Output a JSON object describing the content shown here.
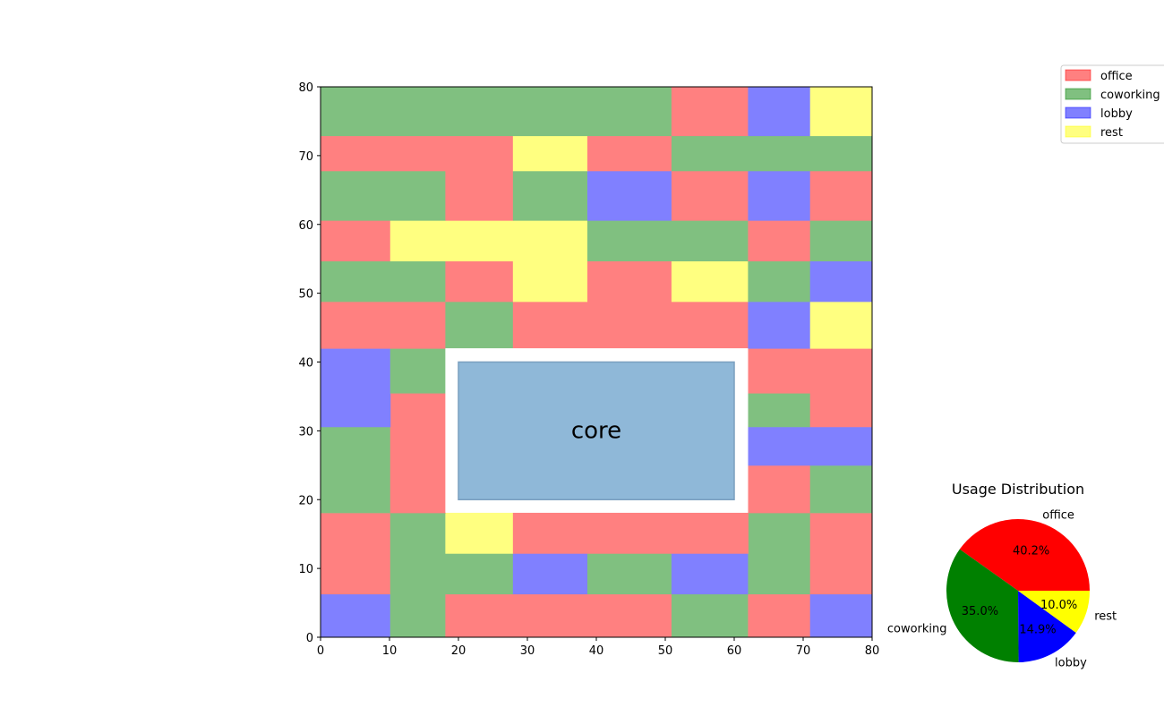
{
  "colors": {
    "office": "#ff8080",
    "coworking": "#80c080",
    "lobby": "#8080ff",
    "rest": "#ffff80",
    "core": "#8fb8d8",
    "pie_office": "#ff0000",
    "pie_coworking": "#008000",
    "pie_lobby": "#0000ff",
    "pie_rest": "#ffff00"
  },
  "chart_data": [
    {
      "type": "heatmap",
      "title": "",
      "xlabel": "",
      "ylabel": "",
      "xlim": [
        0,
        80
      ],
      "ylim": [
        0,
        80
      ],
      "xticks": [
        "0",
        "10",
        "20",
        "30",
        "40",
        "50",
        "60",
        "70",
        "80"
      ],
      "yticks": [
        "0",
        "10",
        "20",
        "30",
        "40",
        "50",
        "60",
        "70",
        "80"
      ],
      "legend": {
        "placement": "top-right",
        "entries": [
          "office",
          "coworking",
          "lobby",
          "rest"
        ]
      },
      "core": {
        "label": "core",
        "x0": 20,
        "y0": 20,
        "x1": 60,
        "y1": 40
      },
      "core_gap": {
        "x0": 18.1,
        "y0": 18.1,
        "x1": 62.0,
        "y1": 42.0
      },
      "cells": [
        {
          "x0": 0,
          "x1": 10.1,
          "y0": 0,
          "y1": 6.3,
          "use": "lobby"
        },
        {
          "x0": 10.1,
          "x1": 18.1,
          "y0": 0,
          "y1": 6.3,
          "use": "coworking"
        },
        {
          "x0": 18.1,
          "x1": 50.9,
          "y0": 0,
          "y1": 6.3,
          "use": "office"
        },
        {
          "x0": 50.9,
          "x1": 62.0,
          "y0": 0,
          "y1": 6.3,
          "use": "coworking"
        },
        {
          "x0": 62.0,
          "x1": 71.0,
          "y0": 0,
          "y1": 6.3,
          "use": "office"
        },
        {
          "x0": 71.0,
          "x1": 80,
          "y0": 0,
          "y1": 6.3,
          "use": "lobby"
        },
        {
          "x0": 0,
          "x1": 10.1,
          "y0": 6.3,
          "y1": 18.1,
          "use": "office"
        },
        {
          "x0": 10.1,
          "x1": 18.1,
          "y0": 6.3,
          "y1": 18.1,
          "use": "coworking"
        },
        {
          "x0": 18.1,
          "x1": 27.9,
          "y0": 6.3,
          "y1": 12.2,
          "use": "coworking"
        },
        {
          "x0": 27.9,
          "x1": 38.7,
          "y0": 6.3,
          "y1": 12.2,
          "use": "lobby"
        },
        {
          "x0": 38.7,
          "x1": 50.9,
          "y0": 6.3,
          "y1": 12.2,
          "use": "coworking"
        },
        {
          "x0": 50.9,
          "x1": 62.0,
          "y0": 6.3,
          "y1": 12.2,
          "use": "lobby"
        },
        {
          "x0": 62.0,
          "x1": 71.0,
          "y0": 6.3,
          "y1": 18.1,
          "use": "coworking"
        },
        {
          "x0": 71.0,
          "x1": 80,
          "y0": 6.3,
          "y1": 18.1,
          "use": "office"
        },
        {
          "x0": 18.1,
          "x1": 27.9,
          "y0": 12.2,
          "y1": 18.1,
          "use": "rest"
        },
        {
          "x0": 27.9,
          "x1": 62.0,
          "y0": 12.2,
          "y1": 18.1,
          "use": "office"
        },
        {
          "x0": 0,
          "x1": 10.1,
          "y0": 18.1,
          "y1": 30.6,
          "use": "coworking"
        },
        {
          "x0": 10.1,
          "x1": 18.1,
          "y0": 18.1,
          "y1": 35.5,
          "use": "office"
        },
        {
          "x0": 62.0,
          "x1": 71.0,
          "y0": 18.1,
          "y1": 25.0,
          "use": "office"
        },
        {
          "x0": 71.0,
          "x1": 80,
          "y0": 18.1,
          "y1": 25.0,
          "use": "coworking"
        },
        {
          "x0": 62.0,
          "x1": 80,
          "y0": 25.0,
          "y1": 30.6,
          "use": "lobby"
        },
        {
          "x0": 0,
          "x1": 10.1,
          "y0": 30.6,
          "y1": 42.0,
          "use": "lobby"
        },
        {
          "x0": 62.0,
          "x1": 71.0,
          "y0": 30.6,
          "y1": 35.5,
          "use": "coworking"
        },
        {
          "x0": 71.0,
          "x1": 80,
          "y0": 30.6,
          "y1": 42.0,
          "use": "office"
        },
        {
          "x0": 10.1,
          "x1": 18.1,
          "y0": 35.5,
          "y1": 42.0,
          "use": "coworking"
        },
        {
          "x0": 62.0,
          "x1": 71.0,
          "y0": 35.5,
          "y1": 42.0,
          "use": "office"
        },
        {
          "x0": 0,
          "x1": 18.1,
          "y0": 42.0,
          "y1": 48.8,
          "use": "office"
        },
        {
          "x0": 18.1,
          "x1": 27.9,
          "y0": 42.0,
          "y1": 48.8,
          "use": "coworking"
        },
        {
          "x0": 27.9,
          "x1": 62.0,
          "y0": 42.0,
          "y1": 48.8,
          "use": "office"
        },
        {
          "x0": 62.0,
          "x1": 71.0,
          "y0": 42.0,
          "y1": 48.8,
          "use": "lobby"
        },
        {
          "x0": 71.0,
          "x1": 80,
          "y0": 42.0,
          "y1": 48.8,
          "use": "rest"
        },
        {
          "x0": 0,
          "x1": 18.1,
          "y0": 48.8,
          "y1": 54.7,
          "use": "coworking"
        },
        {
          "x0": 18.1,
          "x1": 27.9,
          "y0": 48.8,
          "y1": 54.7,
          "use": "office"
        },
        {
          "x0": 27.9,
          "x1": 38.7,
          "y0": 48.8,
          "y1": 60.6,
          "use": "rest"
        },
        {
          "x0": 38.7,
          "x1": 50.9,
          "y0": 48.8,
          "y1": 54.7,
          "use": "office"
        },
        {
          "x0": 50.9,
          "x1": 62.0,
          "y0": 48.8,
          "y1": 54.7,
          "use": "rest"
        },
        {
          "x0": 62.0,
          "x1": 71.0,
          "y0": 48.8,
          "y1": 54.7,
          "use": "coworking"
        },
        {
          "x0": 71.0,
          "x1": 80,
          "y0": 48.8,
          "y1": 54.7,
          "use": "lobby"
        },
        {
          "x0": 0,
          "x1": 10.1,
          "y0": 54.7,
          "y1": 60.6,
          "use": "office"
        },
        {
          "x0": 10.1,
          "x1": 27.9,
          "y0": 54.7,
          "y1": 60.6,
          "use": "rest"
        },
        {
          "x0": 38.7,
          "x1": 62.0,
          "y0": 54.7,
          "y1": 60.6,
          "use": "coworking"
        },
        {
          "x0": 62.0,
          "x1": 71.0,
          "y0": 54.7,
          "y1": 60.6,
          "use": "office"
        },
        {
          "x0": 71.0,
          "x1": 80,
          "y0": 54.7,
          "y1": 60.6,
          "use": "coworking"
        },
        {
          "x0": 0,
          "x1": 18.1,
          "y0": 60.6,
          "y1": 67.8,
          "use": "coworking"
        },
        {
          "x0": 18.1,
          "x1": 27.9,
          "y0": 60.6,
          "y1": 67.8,
          "use": "office"
        },
        {
          "x0": 27.9,
          "x1": 38.7,
          "y0": 60.6,
          "y1": 67.8,
          "use": "coworking"
        },
        {
          "x0": 38.7,
          "x1": 50.9,
          "y0": 60.6,
          "y1": 67.8,
          "use": "lobby"
        },
        {
          "x0": 50.9,
          "x1": 62.0,
          "y0": 60.6,
          "y1": 67.8,
          "use": "office"
        },
        {
          "x0": 62.0,
          "x1": 71.0,
          "y0": 60.6,
          "y1": 67.8,
          "use": "lobby"
        },
        {
          "x0": 71.0,
          "x1": 80,
          "y0": 60.6,
          "y1": 67.8,
          "use": "office"
        },
        {
          "x0": 0,
          "x1": 27.9,
          "y0": 67.8,
          "y1": 72.9,
          "use": "office"
        },
        {
          "x0": 27.9,
          "x1": 38.7,
          "y0": 67.8,
          "y1": 72.9,
          "use": "rest"
        },
        {
          "x0": 38.7,
          "x1": 50.9,
          "y0": 67.8,
          "y1": 72.9,
          "use": "office"
        },
        {
          "x0": 50.9,
          "x1": 80,
          "y0": 67.8,
          "y1": 72.9,
          "use": "coworking"
        },
        {
          "x0": 0,
          "x1": 50.9,
          "y0": 72.9,
          "y1": 80,
          "use": "coworking"
        },
        {
          "x0": 50.9,
          "x1": 62.0,
          "y0": 72.9,
          "y1": 80,
          "use": "office"
        },
        {
          "x0": 62.0,
          "x1": 71.0,
          "y0": 72.9,
          "y1": 80,
          "use": "lobby"
        },
        {
          "x0": 71.0,
          "x1": 80,
          "y0": 72.9,
          "y1": 80,
          "use": "rest"
        }
      ]
    },
    {
      "type": "pie",
      "title": "Usage Distribution",
      "slices": [
        {
          "label": "office",
          "value": 40.2,
          "pct_label": "40.2%"
        },
        {
          "label": "coworking",
          "value": 35.0,
          "pct_label": "35.0%"
        },
        {
          "label": "lobby",
          "value": 14.9,
          "pct_label": "14.9%"
        },
        {
          "label": "rest",
          "value": 10.0,
          "pct_label": "10.0%"
        }
      ]
    }
  ]
}
